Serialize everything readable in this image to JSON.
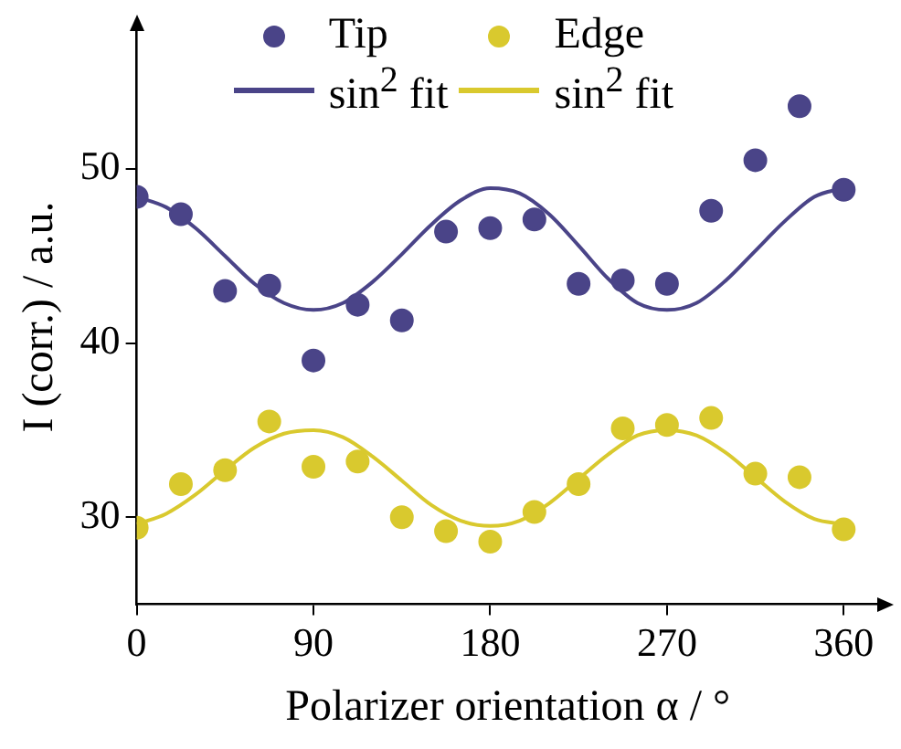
{
  "chart_data": {
    "type": "scatter",
    "xlabel": "Polarizer orientation α / °",
    "ylabel": "I (corr.) / a.u.",
    "xlim": [
      0,
      378
    ],
    "ylim": [
      25,
      58
    ],
    "xticks": [
      0,
      90,
      180,
      270,
      360
    ],
    "yticks": [
      30,
      40,
      50
    ],
    "grid": false,
    "legend": "top",
    "series": [
      {
        "name": "Tip",
        "marker": "circle",
        "color": "#4a4488",
        "x": [
          0,
          22.5,
          45,
          67.5,
          90,
          112.5,
          135,
          157.5,
          180,
          202.5,
          225,
          247.5,
          270,
          292.5,
          315,
          337.5,
          360
        ],
        "values": [
          48.4,
          47.4,
          43.0,
          43.3,
          39.0,
          42.2,
          41.3,
          46.4,
          46.6,
          47.1,
          43.4,
          43.6,
          43.4,
          47.6,
          50.5,
          53.6,
          48.8
        ]
      },
      {
        "name": "Edge",
        "marker": "circle",
        "color": "#d9c92e",
        "x": [
          0,
          22.5,
          45,
          67.5,
          90,
          112.5,
          135,
          157.5,
          180,
          202.5,
          225,
          247.5,
          270,
          292.5,
          315,
          337.5,
          360
        ],
        "values": [
          29.4,
          31.9,
          32.7,
          35.5,
          32.9,
          33.2,
          30.0,
          29.2,
          28.6,
          30.3,
          31.9,
          35.1,
          35.3,
          35.7,
          32.5,
          32.3,
          29.3
        ]
      },
      {
        "name": "sin$^{2}$ fit",
        "type": "line",
        "marker": "none",
        "color": "#4a4488",
        "x": [
          0,
          15,
          30,
          45,
          60,
          75,
          90,
          105,
          120,
          135,
          150,
          165,
          180,
          195,
          210,
          225,
          240,
          255,
          270,
          285,
          300,
          315,
          330,
          345,
          360
        ],
        "values": [
          48.4,
          47.8,
          46.6,
          45.0,
          43.4,
          42.3,
          41.9,
          42.3,
          43.5,
          45.1,
          46.8,
          48.2,
          48.9,
          48.6,
          47.4,
          45.6,
          43.7,
          42.3,
          41.9,
          42.3,
          43.6,
          45.3,
          47.0,
          48.4,
          48.9
        ]
      },
      {
        "name": "sin$^{2}$ fit",
        "type": "line",
        "marker": "none",
        "color": "#d9c92e",
        "x": [
          0,
          15,
          30,
          45,
          60,
          75,
          90,
          105,
          120,
          135,
          150,
          165,
          180,
          195,
          210,
          225,
          240,
          255,
          270,
          285,
          300,
          315,
          330,
          345,
          360
        ],
        "values": [
          29.6,
          30.2,
          31.3,
          32.7,
          34.0,
          34.8,
          35.0,
          34.6,
          33.5,
          32.1,
          30.7,
          29.8,
          29.5,
          29.8,
          30.8,
          32.2,
          33.6,
          34.7,
          35.0,
          34.7,
          33.7,
          32.3,
          30.9,
          29.9,
          29.6
        ]
      }
    ]
  }
}
